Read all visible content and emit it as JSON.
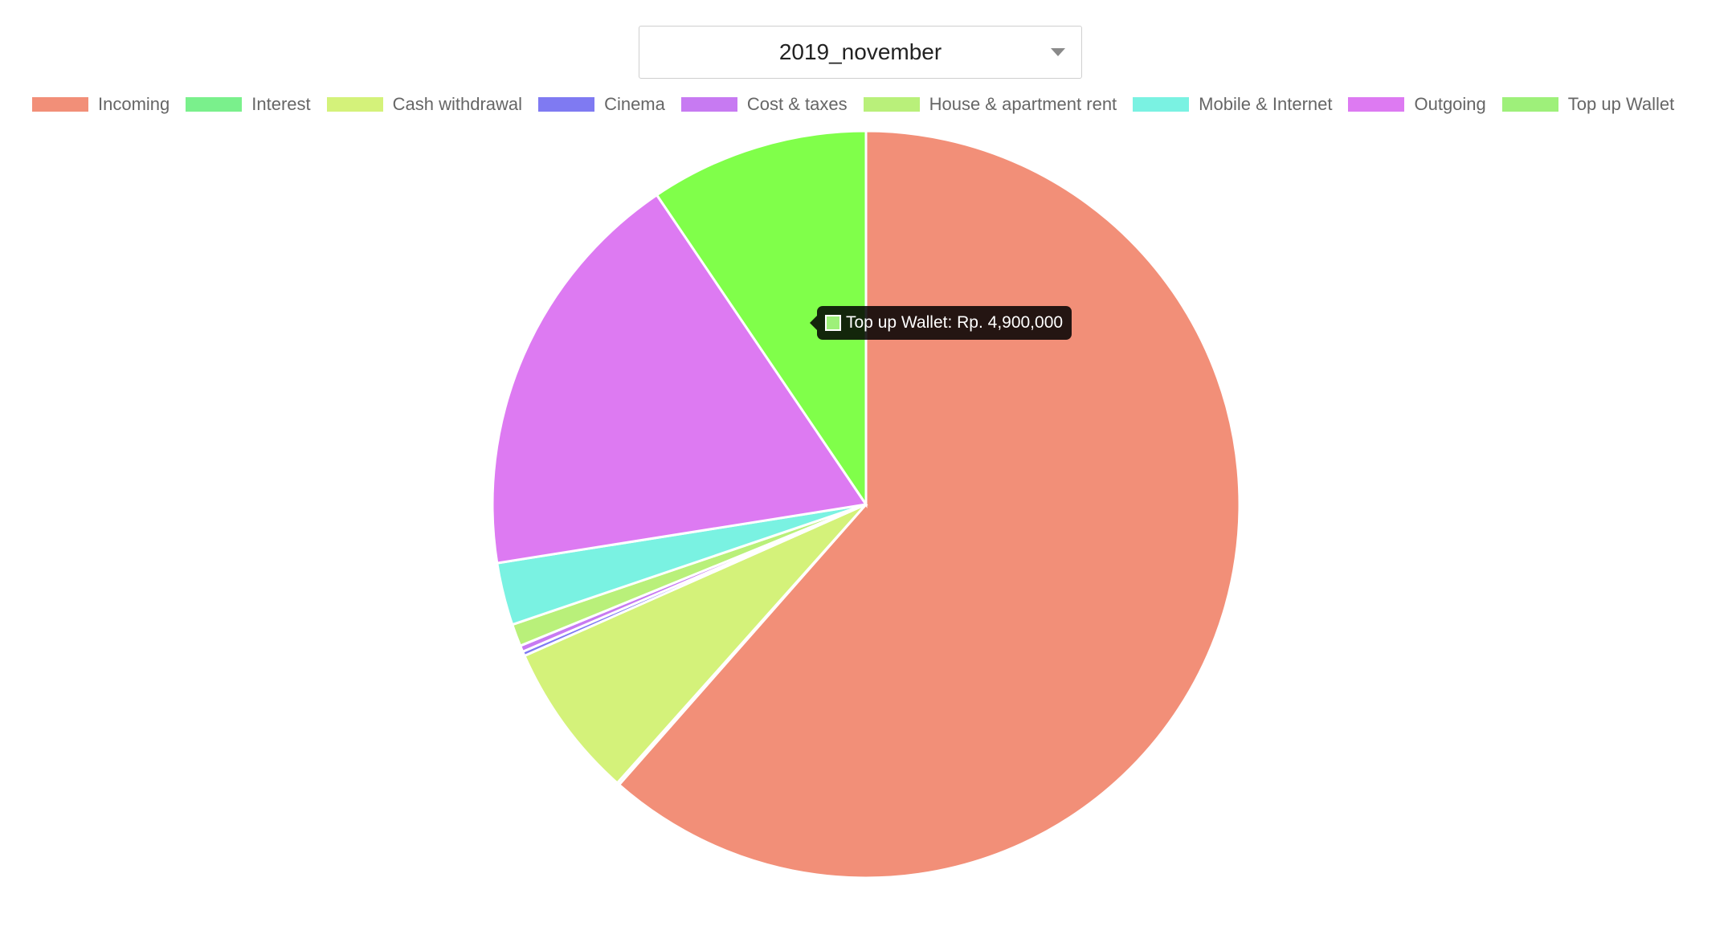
{
  "selector": {
    "value": "2019_november"
  },
  "tooltip": {
    "text": "Top up Wallet: Rp. 4,900,000",
    "color": "#9ef07a"
  },
  "chart_data": {
    "type": "pie",
    "title": "",
    "categories": [
      "Incoming",
      "Interest",
      "Cash withdrawal",
      "Cinema",
      "Cost & taxes",
      "House & apartment rent",
      "Mobile & Internet",
      "Outgoing",
      "Top up Wallet"
    ],
    "legend_colors": [
      "#f28f78",
      "#7af08c",
      "#d4f27a",
      "#7f7af2",
      "#c77af2",
      "#b9f07a",
      "#7af2e2",
      "#dd7af2",
      "#9ef07a"
    ],
    "slice_colors": [
      "#f28f78",
      "#7af08c",
      "#d4f27a",
      "#7f7af2",
      "#c77af2",
      "#b9f07a",
      "#7af2e2",
      "#dd7af2",
      "#80ff4a"
    ],
    "values": [
      31850000,
      55000,
      3500000,
      100000,
      140000,
      500000,
      1400000,
      9350000,
      4900000
    ],
    "currency": "Rp.",
    "legend_position": "top",
    "start_angle": "top",
    "direction": "clockwise"
  }
}
